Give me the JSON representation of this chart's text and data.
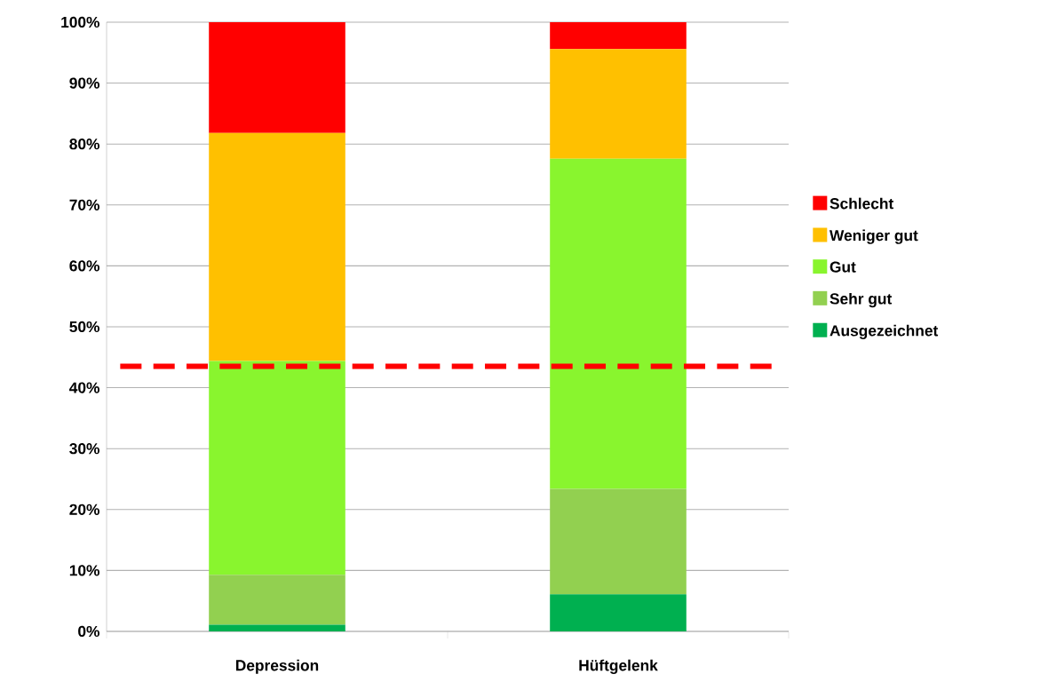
{
  "chart_data": {
    "type": "bar",
    "stacked": true,
    "categories": [
      "Depression",
      "Hüftgelenk"
    ],
    "series": [
      {
        "name": "Ausgezeichnet",
        "color": "#00b050",
        "values": [
          1.1,
          6.1
        ]
      },
      {
        "name": "Sehr gut",
        "color": "#92d050",
        "values": [
          8.2,
          17.3
        ]
      },
      {
        "name": "Gut",
        "color": "#89f52e",
        "values": [
          35.1,
          54.2
        ]
      },
      {
        "name": "Weniger gut",
        "color": "#ffc000",
        "values": [
          37.4,
          18.0
        ]
      },
      {
        "name": "Schlecht",
        "color": "#ff0000",
        "values": [
          18.2,
          4.4
        ]
      }
    ],
    "ylim": [
      0,
      100
    ],
    "yticks": [
      {
        "value": 0,
        "label": "0%"
      },
      {
        "value": 10,
        "label": "10%"
      },
      {
        "value": 20,
        "label": "20%"
      },
      {
        "value": 30,
        "label": "30%"
      },
      {
        "value": 40,
        "label": "40%"
      },
      {
        "value": 50,
        "label": "50%"
      },
      {
        "value": 60,
        "label": "60%"
      },
      {
        "value": 70,
        "label": "70%"
      },
      {
        "value": 80,
        "label": "80%"
      },
      {
        "value": 90,
        "label": "90%"
      },
      {
        "value": 100,
        "label": "100%"
      }
    ],
    "ref_lines": [
      {
        "axis": "y",
        "value": 43.5,
        "color": "#ff0000",
        "line_style": "dashed"
      }
    ],
    "grid": "y",
    "legend": "right"
  }
}
